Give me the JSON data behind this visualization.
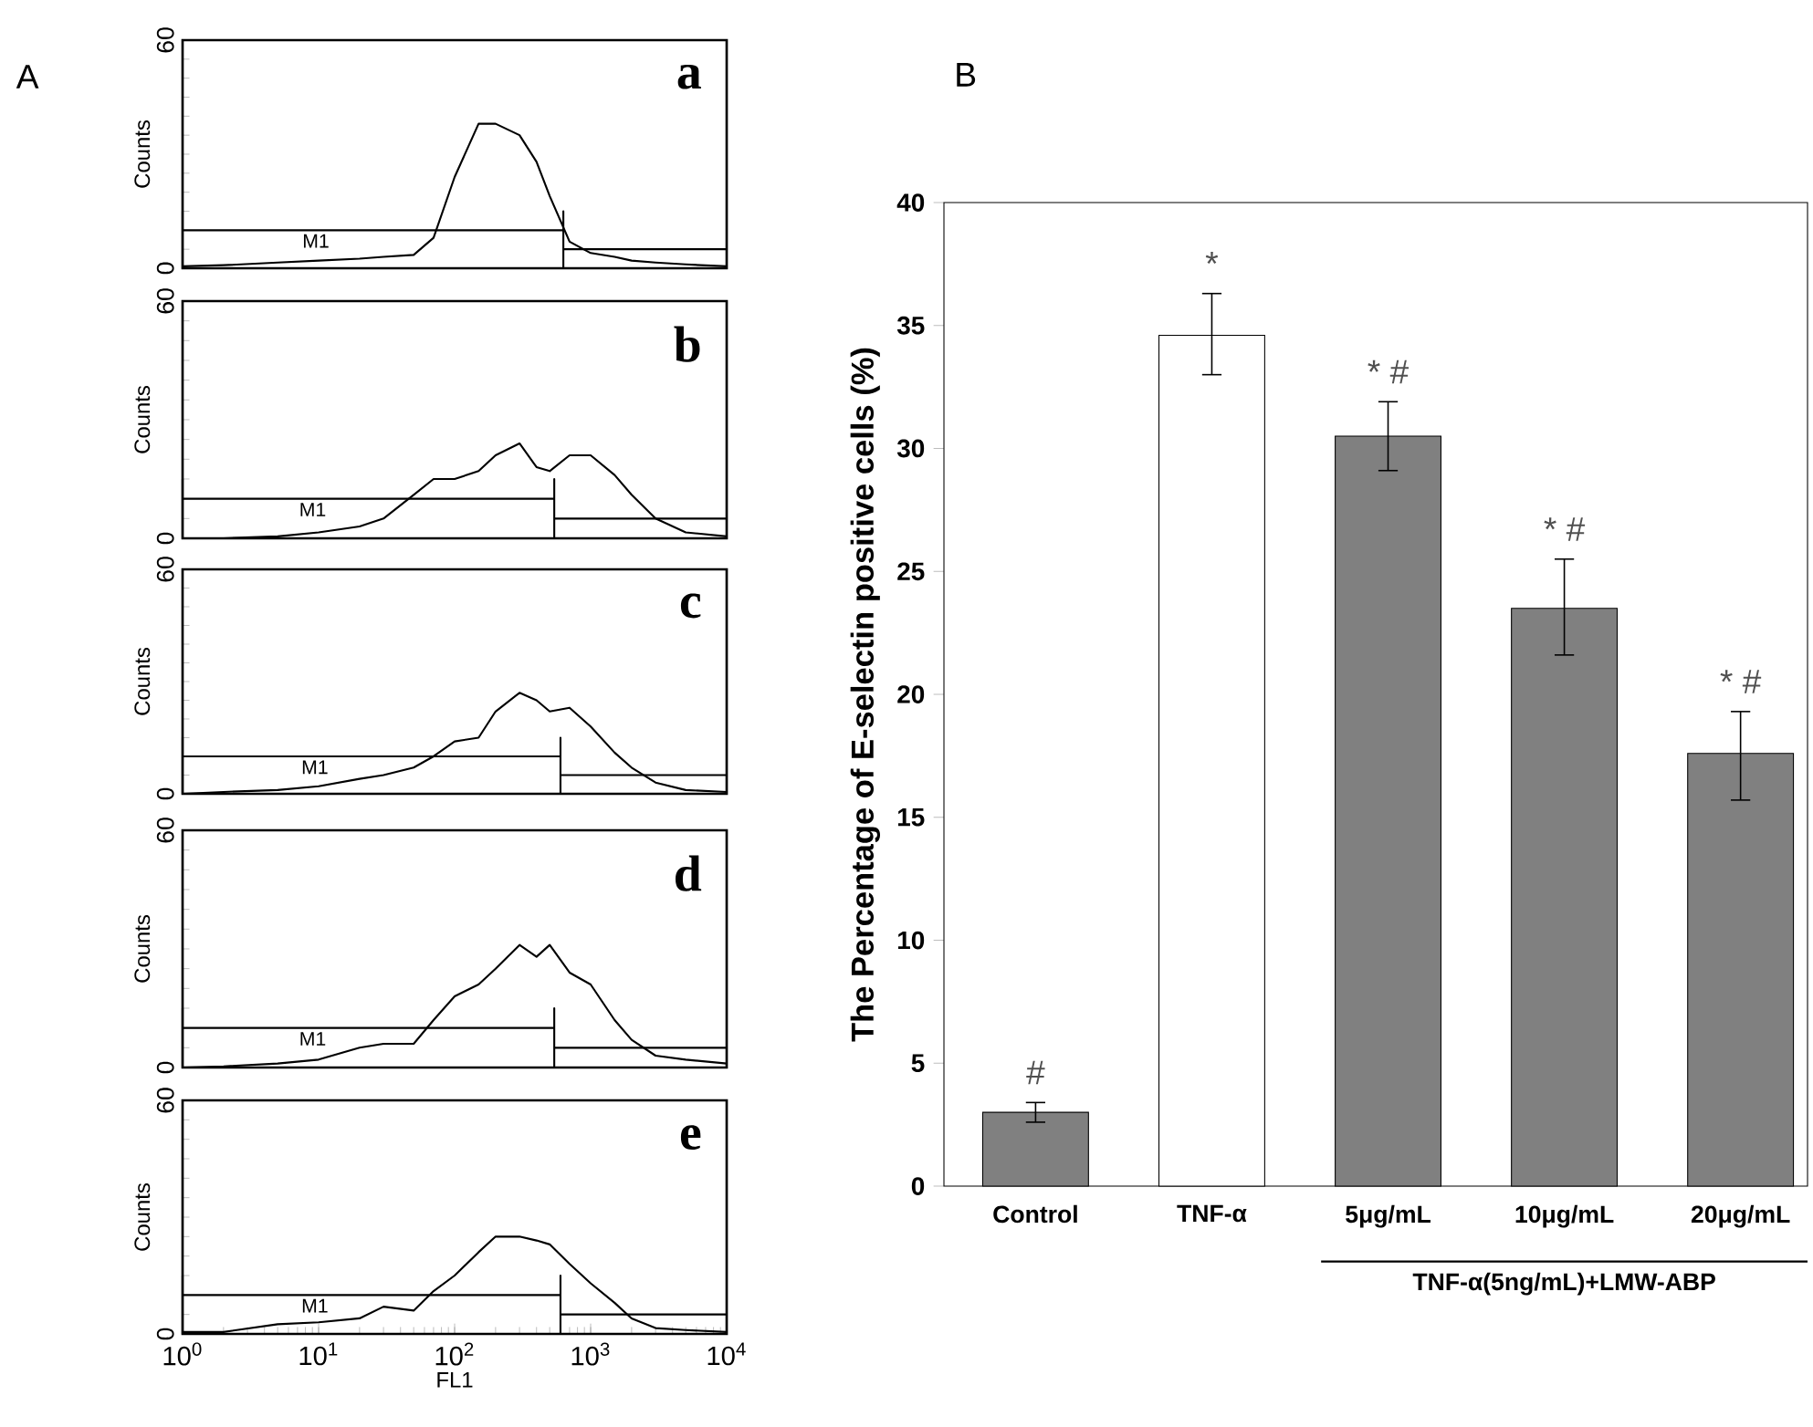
{
  "chart_data": [
    {
      "type": "line",
      "title": "a",
      "annotations": [
        "A"
      ],
      "ylabel": "Counts",
      "log": "x",
      "xlim": [
        1,
        10000
      ],
      "ylim": [
        0,
        60
      ],
      "yticks": [
        0,
        60
      ],
      "tick_labels": "y",
      "series": [
        {
          "color": "#000000",
          "x": [
            1,
            2,
            5,
            10,
            20,
            30,
            50,
            70,
            100,
            150,
            200,
            300,
            400,
            500,
            700,
            1000,
            1500,
            2000,
            3000,
            5000,
            10000
          ],
          "values": [
            0.5,
            0.8,
            1.5,
            2,
            2.5,
            3,
            3.5,
            8,
            24,
            38,
            38,
            35,
            28,
            19,
            7,
            4,
            3,
            2,
            1.5,
            1,
            0.5
          ]
        },
        {
          "name": "M1",
          "color": "#000000",
          "x": [
            1,
            1,
            1,
            630,
            630,
            630
          ],
          "values": [
            0,
            15,
            10,
            10,
            15,
            0
          ]
        },
        {
          "color": "#000000",
          "x": [
            630,
            10000
          ],
          "values": [
            5,
            5
          ]
        }
      ]
    },
    {
      "type": "line",
      "title": "b",
      "ylabel": "Counts",
      "log": "x",
      "xlim": [
        1,
        10000
      ],
      "ylim": [
        0,
        60
      ],
      "yticks": [
        0,
        60
      ],
      "tick_labels": "y",
      "series": [
        {
          "color": "#000000",
          "x": [
            1,
            2,
            5,
            10,
            20,
            30,
            50,
            70,
            100,
            150,
            200,
            300,
            400,
            500,
            700,
            1000,
            1500,
            2000,
            3000,
            5000,
            10000
          ],
          "values": [
            0,
            0,
            0.5,
            1.5,
            3,
            5,
            11,
            15,
            15,
            17,
            21,
            24,
            18,
            17,
            21,
            21,
            16,
            11,
            5,
            1.5,
            0.5
          ]
        },
        {
          "name": "M1",
          "color": "#000000",
          "x": [
            1,
            1,
            1,
            540,
            540,
            540
          ],
          "values": [
            0,
            15,
            10,
            10,
            15,
            0
          ]
        },
        {
          "color": "#000000",
          "x": [
            540,
            10000
          ],
          "values": [
            5,
            5
          ]
        }
      ]
    },
    {
      "type": "line",
      "title": "c",
      "ylabel": "Counts",
      "log": "x",
      "xlim": [
        1,
        10000
      ],
      "ylim": [
        0,
        60
      ],
      "yticks": [
        0,
        60
      ],
      "tick_labels": "y",
      "series": [
        {
          "color": "#000000",
          "x": [
            1,
            2,
            5,
            10,
            20,
            30,
            50,
            70,
            100,
            150,
            200,
            300,
            400,
            500,
            700,
            1000,
            1500,
            2000,
            3000,
            5000,
            10000
          ],
          "values": [
            0,
            0.5,
            1,
            2,
            4,
            5,
            7,
            10,
            14,
            15,
            22,
            27,
            25,
            22,
            23,
            18,
            11,
            7,
            3,
            1,
            0.5
          ]
        },
        {
          "name": "M1",
          "color": "#000000",
          "x": [
            1,
            1,
            1,
            600,
            600,
            600
          ],
          "values": [
            0,
            15,
            10,
            10,
            15,
            0
          ]
        },
        {
          "color": "#000000",
          "x": [
            600,
            10000
          ],
          "values": [
            5,
            5
          ]
        }
      ]
    },
    {
      "type": "line",
      "title": "d",
      "ylabel": "Counts",
      "log": "x",
      "xlim": [
        1,
        10000
      ],
      "ylim": [
        0,
        60
      ],
      "yticks": [
        0,
        60
      ],
      "tick_labels": "y",
      "series": [
        {
          "color": "#000000",
          "x": [
            1,
            2,
            5,
            10,
            20,
            30,
            50,
            70,
            100,
            150,
            200,
            300,
            400,
            500,
            700,
            1000,
            1500,
            2000,
            3000,
            5000,
            10000
          ],
          "values": [
            0,
            0.3,
            1,
            2,
            5,
            6,
            6,
            12,
            18,
            21,
            25,
            31,
            28,
            31,
            24,
            21,
            12,
            7,
            3,
            2,
            1
          ]
        },
        {
          "name": "M1",
          "color": "#000000",
          "x": [
            1,
            1,
            1,
            540,
            540,
            540
          ],
          "values": [
            0,
            15,
            10,
            10,
            15,
            0
          ]
        },
        {
          "color": "#000000",
          "x": [
            540,
            10000
          ],
          "values": [
            5,
            5
          ]
        }
      ]
    },
    {
      "type": "line",
      "title": "e",
      "ylabel": "Counts",
      "xlabel": "FL1",
      "log": "x",
      "xlim": [
        1,
        10000
      ],
      "xticks": [
        {
          "value": 1,
          "label": "10$^{0}$"
        },
        {
          "value": 10,
          "label": "10$^{1}$"
        },
        {
          "value": 100,
          "label": "10$^{2}$"
        },
        {
          "value": 1000,
          "label": "10$^{3}$"
        },
        {
          "value": 10000,
          "label": "10$^{4}$"
        }
      ],
      "ylim": [
        0,
        60
      ],
      "yticks": [
        0,
        60
      ],
      "series": [
        {
          "color": "#000000",
          "x": [
            1,
            2,
            5,
            10,
            20,
            30,
            50,
            70,
            100,
            150,
            200,
            300,
            400,
            500,
            700,
            1000,
            1500,
            2000,
            3000,
            5000,
            10000
          ],
          "values": [
            0.5,
            0.5,
            2.5,
            3,
            4,
            7,
            6,
            11,
            15,
            21,
            25,
            25,
            24,
            23,
            18,
            13,
            8,
            4,
            1.5,
            1,
            0.5
          ]
        },
        {
          "name": "M1",
          "color": "#000000",
          "x": [
            1,
            1,
            1,
            600,
            600,
            600
          ],
          "values": [
            0,
            15,
            10,
            10,
            15,
            0
          ]
        },
        {
          "color": "#000000",
          "x": [
            600,
            10000
          ],
          "values": [
            5,
            5
          ]
        }
      ]
    },
    {
      "type": "bar",
      "title": "B",
      "ylabel": "The Percentage of E-selectin positive cells (%)",
      "categories": [
        "Control",
        "TNF-α",
        "5μg/mL",
        "10μg/mL",
        "20μg/mL"
      ],
      "values": [
        3.0,
        34.6,
        30.5,
        23.5,
        17.6
      ],
      "colors": [
        "#808080",
        "#ffffff",
        "#808080",
        "#808080",
        "#808080"
      ],
      "errors": [
        [
          2.6,
          3.4
        ],
        [
          33.0,
          36.3
        ],
        [
          29.1,
          31.9
        ],
        [
          21.6,
          25.5
        ],
        [
          15.7,
          19.3
        ]
      ],
      "ylim": [
        0,
        40
      ],
      "yticks": [
        0,
        5,
        10,
        15,
        20,
        25,
        30,
        35,
        40
      ],
      "annotations": [
        "#",
        "*",
        "* #",
        "* #",
        "* #",
        "TNF-α(5ng/mL)+LMW-ABP"
      ]
    }
  ]
}
